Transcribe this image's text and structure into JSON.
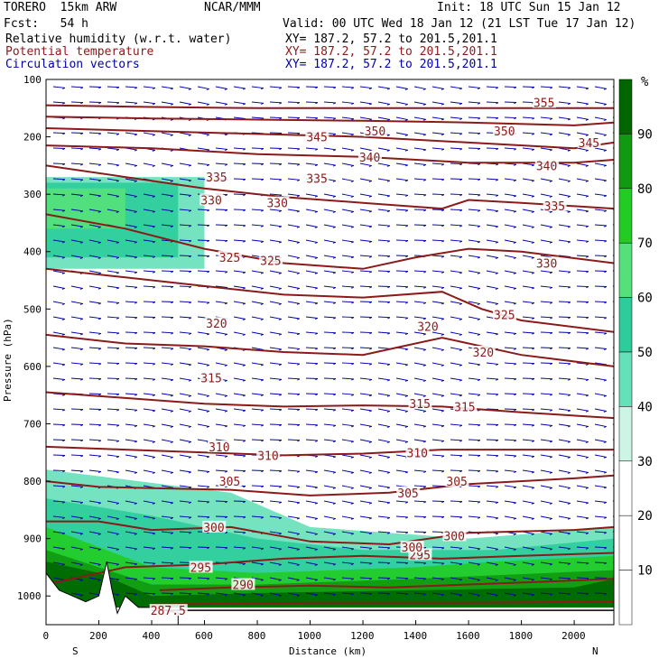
{
  "header": {
    "model": "TORERO  15km ARW",
    "center": "NCAR/MMM",
    "init": "Init: 18 UTC Sun 15 Jan 12",
    "fcst": "Fcst:   54 h",
    "valid": "Valid: 00 UTC Wed 18 Jan 12 (21 LST Tue 17 Jan 12)",
    "fields": [
      {
        "label": "Relative humidity (w.r.t. water)",
        "xy": "XY= 187.2, 57.2 to 201.5,201.1",
        "color": "#000000"
      },
      {
        "label": "Potential temperature",
        "xy": "XY= 187.2, 57.2 to 201.5,201.1",
        "color": "#8b1a1a"
      },
      {
        "label": "Circulation vectors",
        "xy": "XY= 187.2, 57.2 to 201.5,201.1",
        "color": "#0000aa"
      }
    ]
  },
  "chart_data": {
    "type": "contour",
    "xlabel": "Distance (km)",
    "ylabel": "Pressure (hPa)",
    "xlim": [
      0,
      2150
    ],
    "ylim": [
      1050,
      100
    ],
    "x_ticks": [
      0,
      200,
      400,
      600,
      800,
      1000,
      1200,
      1400,
      1600,
      1800,
      2000
    ],
    "y_ticks": [
      100,
      200,
      300,
      400,
      500,
      600,
      700,
      800,
      900,
      1000
    ],
    "x_endpoints": {
      "left": "S",
      "right": "N"
    },
    "colorbar": {
      "unit": "%",
      "levels": [
        10,
        20,
        30,
        40,
        50,
        60,
        70,
        80,
        90
      ],
      "colors": [
        "#ffffff",
        "#ffffff",
        "#ffffff",
        "#ccf5e6",
        "#66e0b8",
        "#2ecc9a",
        "#55e07a",
        "#22cc22",
        "#119911",
        "#006600"
      ]
    },
    "theta_contours": [
      {
        "label": "287.5",
        "x": [
          400,
          1000,
          1600,
          2150
        ],
        "p": [
          1015,
          1012,
          1012,
          1010
        ],
        "label_at": [
          [
            440,
            1025
          ]
        ]
      },
      {
        "label": "290",
        "x": [
          430,
          700,
          1000,
          1300,
          1600,
          1900,
          2150
        ],
        "p": [
          990,
          985,
          982,
          985,
          980,
          975,
          970
        ],
        "label_at": [
          [
            750,
            980
          ]
        ]
      },
      {
        "label": "295",
        "x": [
          0,
          300,
          600,
          900,
          1200,
          1500,
          1800,
          2150
        ],
        "p": [
          980,
          950,
          945,
          935,
          930,
          935,
          930,
          925
        ],
        "label_at": [
          [
            590,
            950
          ],
          [
            1420,
            928
          ]
        ]
      },
      {
        "label": "300",
        "x": [
          0,
          200,
          400,
          700,
          1000,
          1300,
          1600,
          2000,
          2150
        ],
        "p": [
          870,
          870,
          885,
          880,
          905,
          910,
          890,
          885,
          880
        ],
        "label_at": [
          [
            640,
            880
          ],
          [
            1390,
            915
          ],
          [
            1550,
            895
          ]
        ]
      },
      {
        "label": "305",
        "x": [
          0,
          200,
          400,
          700,
          1000,
          1300,
          1600,
          2000,
          2150
        ],
        "p": [
          800,
          810,
          812,
          815,
          825,
          820,
          805,
          795,
          790
        ],
        "label_at": [
          [
            700,
            800
          ],
          [
            1375,
            820
          ],
          [
            1560,
            800
          ]
        ]
      },
      {
        "label": "310",
        "x": [
          0,
          300,
          600,
          900,
          1200,
          1500,
          1800,
          2150
        ],
        "p": [
          740,
          745,
          750,
          755,
          752,
          745,
          745,
          745
        ],
        "label_at": [
          [
            660,
            740
          ],
          [
            845,
            755
          ],
          [
            1410,
            750
          ]
        ]
      },
      {
        "label": "315",
        "x": [
          0,
          300,
          600,
          900,
          1200,
          1500,
          1800,
          2150
        ],
        "p": [
          645,
          655,
          665,
          670,
          668,
          670,
          680,
          690
        ],
        "label_at": [
          [
            630,
            620
          ],
          [
            1420,
            665
          ],
          [
            1590,
            670
          ]
        ]
      },
      {
        "label": "320",
        "x": [
          0,
          300,
          600,
          900,
          1200,
          1350,
          1500,
          1800,
          2150
        ],
        "p": [
          545,
          560,
          565,
          575,
          580,
          565,
          550,
          580,
          600
        ],
        "label_at": [
          [
            650,
            525
          ],
          [
            1450,
            530
          ],
          [
            1660,
            575
          ]
        ]
      },
      {
        "label": "325",
        "x": [
          0,
          300,
          600,
          900,
          1200,
          1500,
          1650,
          1800,
          2150
        ],
        "p": [
          430,
          445,
          460,
          475,
          480,
          470,
          500,
          520,
          540
        ],
        "label_at": [
          [
            700,
            410
          ],
          [
            855,
            415
          ],
          [
            1740,
            510
          ]
        ]
      },
      {
        "label": "330",
        "x": [
          0,
          300,
          600,
          900,
          1200,
          1400,
          1600,
          1800,
          2150
        ],
        "p": [
          335,
          360,
          395,
          420,
          430,
          410,
          395,
          400,
          420
        ],
        "label_at": [
          [
            630,
            310
          ],
          [
            880,
            315
          ],
          [
            1900,
            420
          ]
        ]
      },
      {
        "label": "335",
        "x": [
          0,
          300,
          600,
          900,
          1200,
          1500,
          1600,
          1800,
          2150
        ],
        "p": [
          250,
          270,
          290,
          305,
          315,
          325,
          310,
          315,
          325
        ],
        "label_at": [
          [
            650,
            270
          ],
          [
            1030,
            272
          ],
          [
            1930,
            320
          ]
        ]
      },
      {
        "label": "340",
        "x": [
          0,
          400,
          800,
          1200,
          1600,
          2000,
          2150
        ],
        "p": [
          215,
          220,
          230,
          235,
          245,
          245,
          240
        ],
        "label_at": [
          [
            1230,
            235
          ],
          [
            1900,
            250
          ]
        ]
      },
      {
        "label": "345",
        "x": [
          0,
          400,
          800,
          1200,
          1600,
          2000,
          2150
        ],
        "p": [
          185,
          190,
          195,
          200,
          210,
          220,
          210
        ],
        "label_at": [
          [
            1030,
            200
          ],
          [
            2060,
            210
          ]
        ]
      },
      {
        "label": "350",
        "x": [
          0,
          400,
          800,
          1200,
          1600,
          2000,
          2150
        ],
        "p": [
          165,
          168,
          170,
          172,
          175,
          180,
          175
        ],
        "label_at": [
          [
            1250,
            190
          ],
          [
            1740,
            190
          ]
        ]
      },
      {
        "label": "355",
        "x": [
          0,
          400,
          800,
          1200,
          1600,
          2000,
          2150
        ],
        "p": [
          145,
          148,
          150,
          150,
          150,
          150,
          150
        ],
        "label_at": [
          [
            1890,
            140
          ]
        ]
      }
    ],
    "rh_regions": [
      {
        "level": 40,
        "x": [
          0,
          600,
          600,
          0
        ],
        "p": [
          270,
          270,
          430,
          430
        ]
      },
      {
        "level": 50,
        "x": [
          0,
          500,
          500,
          0
        ],
        "p": [
          280,
          280,
          410,
          410
        ]
      },
      {
        "level": 60,
        "x": [
          0,
          300,
          300,
          0
        ],
        "p": [
          290,
          290,
          360,
          360
        ]
      },
      {
        "level": 40,
        "x": [
          0,
          700,
          1000,
          1600,
          2150,
          2150,
          0
        ],
        "p": [
          780,
          820,
          880,
          900,
          880,
          1020,
          1020
        ]
      },
      {
        "level": 50,
        "x": [
          0,
          400,
          800,
          1200,
          1700,
          2150,
          2150,
          0
        ],
        "p": [
          830,
          860,
          900,
          920,
          920,
          900,
          1020,
          1020
        ]
      },
      {
        "level": 70,
        "x": [
          0,
          400,
          800,
          1400,
          1700,
          2150,
          2150,
          0
        ],
        "p": [
          880,
          950,
          960,
          950,
          940,
          930,
          1020,
          1020
        ]
      },
      {
        "level": 80,
        "x": [
          0,
          400,
          800,
          1400,
          2150,
          2150,
          0
        ],
        "p": [
          920,
          980,
          980,
          970,
          955,
          1020,
          1020
        ]
      },
      {
        "level": 90,
        "x": [
          0,
          200,
          400,
          800,
          1400,
          2000,
          2150,
          2150,
          0
        ],
        "p": [
          940,
          960,
          1000,
          995,
          990,
          985,
          970,
          1020,
          1020
        ]
      }
    ],
    "terrain": {
      "x": [
        0,
        50,
        100,
        150,
        200,
        230,
        250,
        270,
        300,
        350,
        400,
        450,
        500
      ],
      "p": [
        960,
        990,
        1000,
        1010,
        1000,
        940,
        990,
        1030,
        1000,
        1020,
        1020,
        1025,
        1030
      ]
    }
  }
}
